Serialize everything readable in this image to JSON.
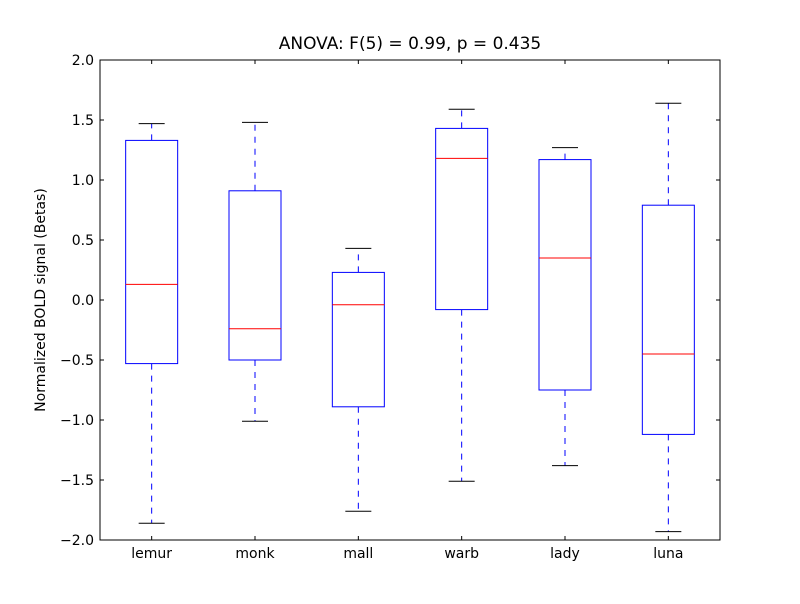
{
  "chart_data": {
    "type": "boxplot",
    "title": "ANOVA: F(5) = 0.99, p = 0.435",
    "xlabel": "",
    "ylabel": "Normalized BOLD signal (Betas)",
    "ylim": [
      -2.0,
      2.0
    ],
    "yticks": [
      "−2.0",
      "−1.5",
      "−1.0",
      "−0.5",
      "0.0",
      "0.5",
      "1.0",
      "1.5",
      "2.0"
    ],
    "ytick_values": [
      -2.0,
      -1.5,
      -1.0,
      -0.5,
      0.0,
      0.5,
      1.0,
      1.5,
      2.0
    ],
    "grid": false,
    "categories": [
      "lemur",
      "monk",
      "mall",
      "warb",
      "lady",
      "luna"
    ],
    "boxes": [
      {
        "whisker_low": -1.86,
        "q1": -0.53,
        "median": 0.13,
        "q3": 1.33,
        "whisker_high": 1.47
      },
      {
        "whisker_low": -1.01,
        "q1": -0.5,
        "median": -0.24,
        "q3": 0.91,
        "whisker_high": 1.48
      },
      {
        "whisker_low": -1.76,
        "q1": -0.89,
        "median": -0.04,
        "q3": 0.23,
        "whisker_high": 0.43
      },
      {
        "whisker_low": -1.51,
        "q1": -0.08,
        "median": 1.18,
        "q3": 1.43,
        "whisker_high": 1.59
      },
      {
        "whisker_low": -1.38,
        "q1": -0.75,
        "median": 0.35,
        "q3": 1.17,
        "whisker_high": 1.27
      },
      {
        "whisker_low": -1.93,
        "q1": -1.12,
        "median": -0.45,
        "q3": 0.79,
        "whisker_high": 1.64
      }
    ],
    "colors": {
      "box": "#0000ff",
      "median": "#ff0000",
      "cap": "#000000"
    }
  }
}
